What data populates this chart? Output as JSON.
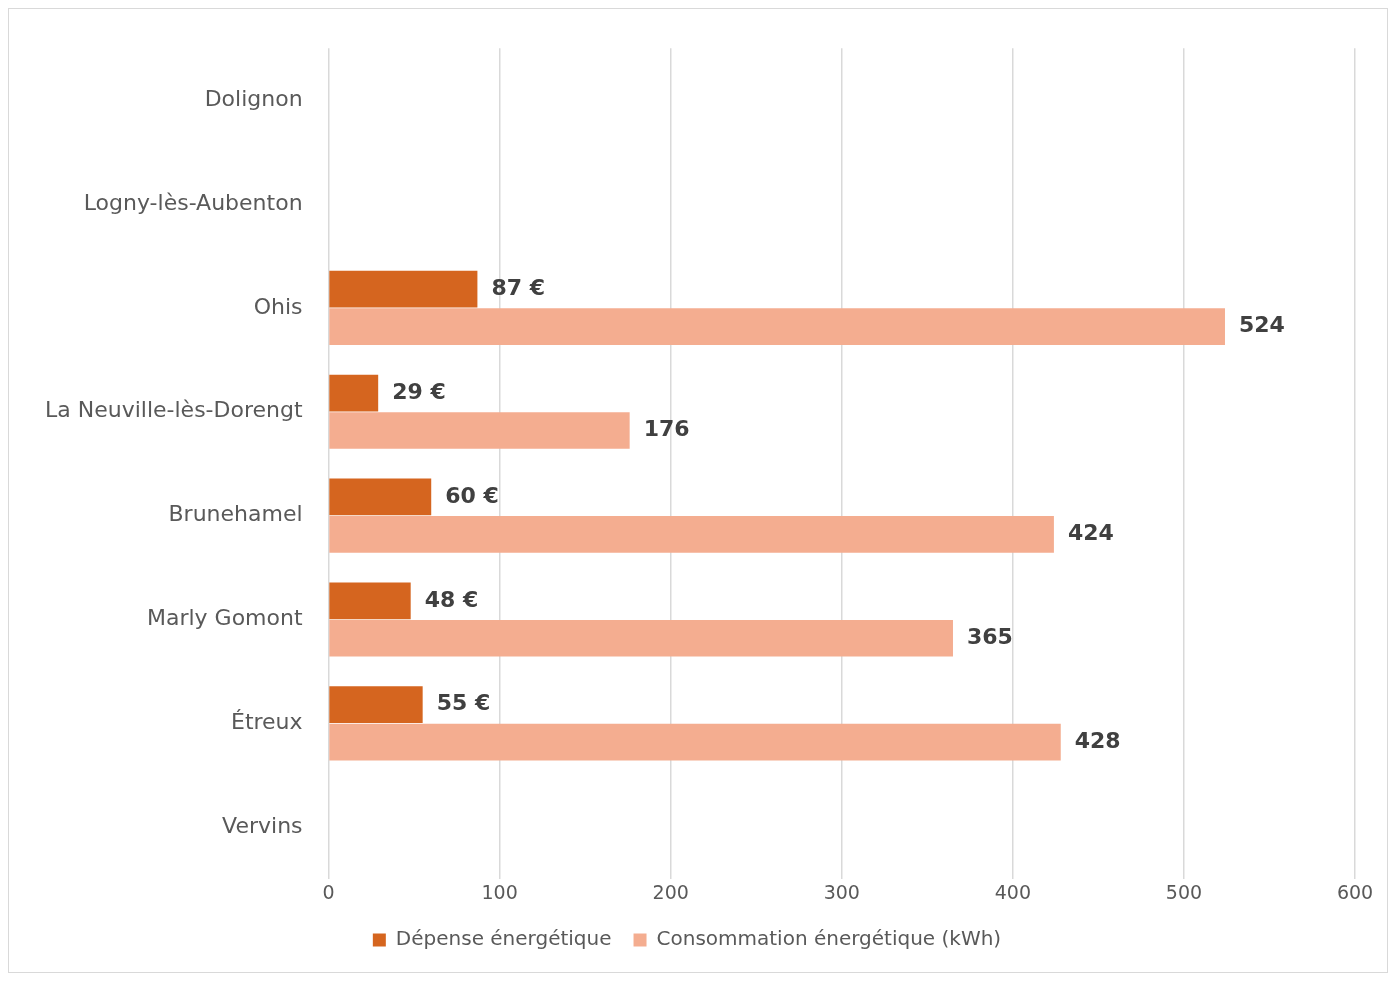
{
  "chart_data": {
    "type": "bar",
    "orientation": "horizontal",
    "categories": [
      "Dolignon",
      "Logny-lès-Aubenton",
      "Ohis",
      "La Neuville-lès-Dorengt",
      "Brunehamel",
      "Marly Gomont",
      "Étreux",
      "Vervins"
    ],
    "series": [
      {
        "name": "Dépense énergétique",
        "color": "#d5651f",
        "values": [
          null,
          null,
          87,
          29,
          60,
          48,
          55,
          null
        ],
        "value_labels": [
          null,
          null,
          "87 €",
          "29 €",
          "60 €",
          "48 €",
          "55 €",
          null
        ]
      },
      {
        "name": "Consommation énergétique (kWh)",
        "color": "#f4ad90",
        "values": [
          null,
          null,
          524,
          176,
          424,
          365,
          428,
          null
        ],
        "value_labels": [
          null,
          null,
          "524",
          "176",
          "424",
          "365",
          "428",
          null
        ]
      }
    ],
    "xlim": [
      0,
      600
    ],
    "xticks": [
      0,
      100,
      200,
      300,
      400,
      500,
      600
    ],
    "grid": "x",
    "legend": "bottom"
  }
}
